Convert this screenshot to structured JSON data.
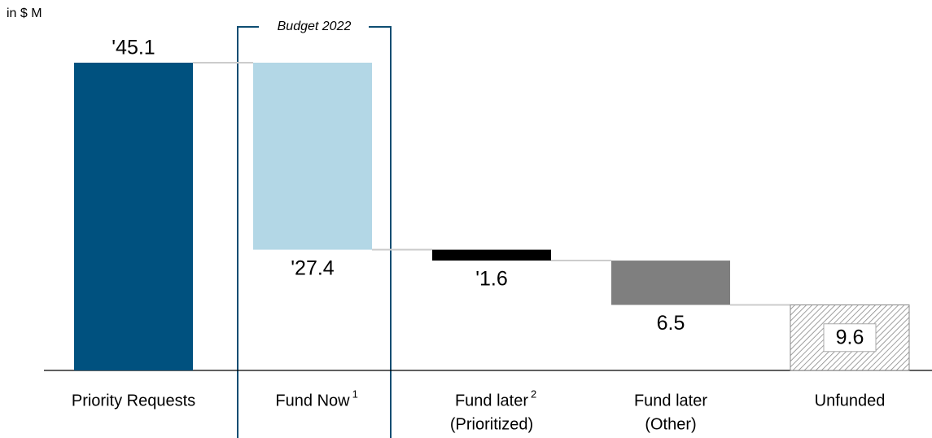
{
  "chart_data": {
    "type": "waterfall",
    "unit_label": "in $ M",
    "annotation": "Budget 2022",
    "categories": [
      [
        "Priority Requests"
      ],
      [
        "Fund Now"
      ],
      [
        "Fund later",
        "(Prioritized)"
      ],
      [
        "Fund later",
        "(Other)"
      ],
      [
        "Unfunded"
      ]
    ],
    "footnotes": [
      null,
      "1",
      "2",
      null,
      null
    ],
    "values": [
      45.1,
      27.4,
      1.6,
      6.5,
      9.6
    ],
    "value_labels": [
      "'45.1",
      "'27.4",
      "'1.6",
      "6.5",
      "9.6"
    ],
    "colors": [
      "#00517f",
      "#b3d7e6",
      "#000000",
      "#7f7f7f",
      "hatch"
    ]
  }
}
